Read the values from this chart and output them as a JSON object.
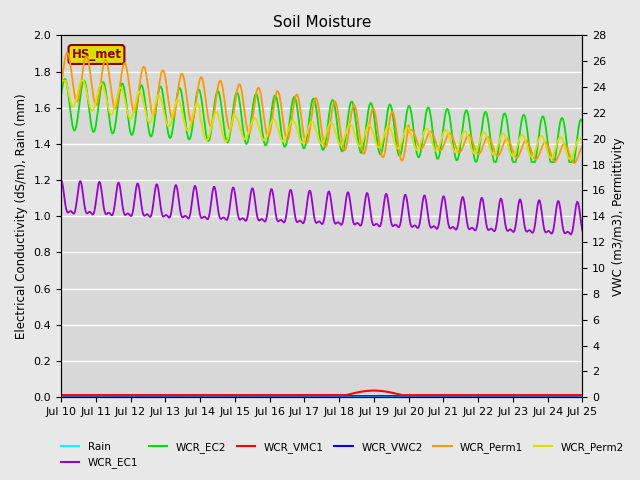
{
  "title": "Soil Moisture",
  "ylabel_left": "Electrical Conductivity (dS/m), Rain (mm)",
  "ylabel_right": "VWC (m3/m3), Permittivity",
  "ylim_left": [
    0.0,
    2.0
  ],
  "ylim_right": [
    0,
    28
  ],
  "yticks_left": [
    0.0,
    0.2,
    0.4,
    0.6,
    0.8,
    1.0,
    1.2,
    1.4,
    1.6,
    1.8,
    2.0
  ],
  "yticks_right": [
    0,
    2,
    4,
    6,
    8,
    10,
    12,
    14,
    16,
    18,
    20,
    22,
    24,
    26,
    28
  ],
  "xtick_labels": [
    "Jul 10",
    "Jul 11",
    "Jul 12",
    "Jul 13",
    "Jul 14",
    "Jul 15",
    "Jul 16",
    "Jul 17",
    "Jul 18",
    "Jul 19",
    "Jul 20",
    "Jul 21",
    "Jul 22",
    "Jul 23",
    "Jul 24",
    "Jul 25"
  ],
  "colors": {
    "Rain": "#00ffff",
    "WCR_EC1": "#9900cc",
    "WCR_EC2": "#00dd00",
    "WCR_VMC1": "#ff0000",
    "WCR_VWC2": "#0000ff",
    "WCR_Perm1": "#ff9900",
    "WCR_Perm2": "#dddd00"
  },
  "background_color": "#e8e8e8",
  "plot_bg_color": "#d8d8d8",
  "hs_met_bg": "#dddd00",
  "hs_met_fg": "#880000",
  "legend_row1": [
    "Rain",
    "WCR_EC1",
    "WCR_EC2",
    "WCR_VMC1",
    "WCR_VWC2",
    "WCR_Perm1"
  ],
  "legend_row2": [
    "WCR_Perm2"
  ]
}
